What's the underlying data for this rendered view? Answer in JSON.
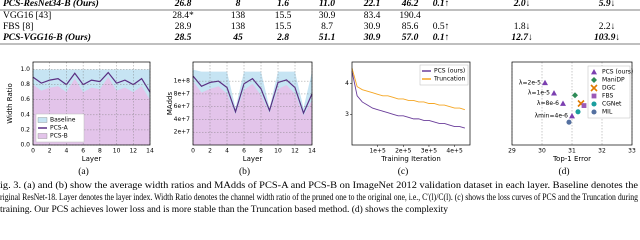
{
  "table": {
    "rows": [
      [
        "PCS-ResNet34-B (Ours)",
        "26.8",
        "8",
        "1.6",
        "11.0",
        "22.1",
        "46.2",
        "0.1↑",
        "2.0↓",
        "5.9↓"
      ],
      [
        "VGG16 [43]",
        "28.4*",
        "138",
        "15.5",
        "30.9",
        "83.4",
        "190.4"
      ],
      [
        "FBS [8]",
        "28.9",
        "138",
        "15.5",
        "8.7",
        "30.9",
        "85.6",
        "0.5↑",
        "1.8↓",
        "2.2↓"
      ],
      [
        "PCS-VGG16-B (Ours)",
        "28.5",
        "45",
        "2.8",
        "51.1",
        "30.9",
        "57.0",
        "0.1↑",
        "12.7↓",
        "103.9↓"
      ]
    ]
  },
  "chart_data": [
    {
      "type": "area",
      "subtitle": "(a)",
      "xlabel": "Layer",
      "ylabel": "Width Ratio",
      "x": [
        0,
        1,
        2,
        3,
        4,
        5,
        6,
        7,
        8,
        9,
        10,
        11,
        12,
        13,
        14
      ],
      "xlim": [
        0,
        14
      ],
      "xticks": [
        0,
        2,
        4,
        6,
        8,
        10,
        12,
        14
      ],
      "ylim": [
        0,
        1.1
      ],
      "yticks": [
        {
          "value": 0,
          "label": "0.0"
        },
        0.2,
        0.4,
        0.6,
        0.8,
        {
          "value": 1,
          "label": "1.0"
        }
      ],
      "grid": true,
      "legend": "lower left",
      "series": [
        {
          "name": "Baseline",
          "style": "area",
          "color": "#c6e4f3",
          "values": [
            1,
            1,
            1,
            1,
            1,
            1,
            1,
            1,
            1,
            1,
            1,
            1,
            1,
            1,
            1
          ]
        },
        {
          "name": "PCS-A",
          "style": "line",
          "color": "#5a2d82",
          "values": [
            0.9,
            0.82,
            0.86,
            0.88,
            0.8,
            0.95,
            0.8,
            0.86,
            0.84,
            0.96,
            0.82,
            0.86,
            0.8,
            0.88,
            0.7
          ]
        },
        {
          "name": "PCS-B",
          "style": "area",
          "color": "#e3c4ea",
          "values": [
            0.8,
            0.72,
            0.76,
            0.78,
            0.7,
            0.88,
            0.7,
            0.76,
            0.74,
            0.9,
            0.72,
            0.76,
            0.7,
            0.78,
            0.6
          ]
        }
      ]
    },
    {
      "type": "area",
      "subtitle": "(b)",
      "xlabel": "Layer",
      "ylabel": "MAdds",
      "x": [
        0,
        1,
        2,
        3,
        4,
        5,
        6,
        7,
        8,
        9,
        10,
        11,
        12,
        13,
        14
      ],
      "xlim": [
        0,
        14
      ],
      "xticks": [
        0,
        2,
        4,
        6,
        8,
        10,
        12,
        14
      ],
      "ylim": [
        0,
        130000000
      ],
      "yticks": [
        {
          "value": 20000000,
          "label": "2e+7"
        },
        {
          "value": 40000000,
          "label": "4e+7"
        },
        {
          "value": 60000000,
          "label": "6e+7"
        },
        {
          "value": 80000000,
          "label": "8e+7"
        },
        {
          "value": 100000000,
          "label": "1e+8"
        }
      ],
      "grid": true,
      "series": [
        {
          "name": "Baseline",
          "style": "area",
          "color": "#c6e4f3",
          "values": [
            118000000,
            115000000,
            115000000,
            115000000,
            115000000,
            58000000,
            115000000,
            115000000,
            115000000,
            58000000,
            115000000,
            115000000,
            115000000,
            58000000,
            115000000
          ]
        },
        {
          "name": "PCS-A",
          "style": "line",
          "color": "#5a2d82",
          "values": [
            108000000,
            92000000,
            98000000,
            100000000,
            90000000,
            52000000,
            96000000,
            104000000,
            88000000,
            54000000,
            98000000,
            102000000,
            90000000,
            50000000,
            80000000
          ]
        },
        {
          "name": "PCS-B",
          "style": "area",
          "color": "#e3c4ea",
          "values": [
            100000000,
            82000000,
            88000000,
            92000000,
            80000000,
            48000000,
            86000000,
            96000000,
            78000000,
            50000000,
            88000000,
            94000000,
            80000000,
            46000000,
            70000000
          ]
        }
      ]
    },
    {
      "type": "line",
      "subtitle": "(c)",
      "xlabel": "Training Iteration",
      "x": [
        0,
        20000,
        40000,
        60000,
        80000,
        100000,
        120000,
        140000,
        160000,
        180000,
        200000,
        220000,
        240000,
        260000,
        280000,
        300000,
        320000,
        340000,
        360000,
        380000,
        400000,
        420000,
        440000
      ],
      "xlim": [
        0,
        460000
      ],
      "xticks": [
        {
          "value": 100000,
          "label": "1e+5"
        },
        {
          "value": 200000,
          "label": "2e+5"
        },
        {
          "value": 300000,
          "label": "3e+5"
        },
        {
          "value": 400000,
          "label": "4e+5"
        }
      ],
      "ylim": [
        2,
        4.7
      ],
      "yticks": [
        3,
        4
      ],
      "grid": false,
      "legend": "upper right",
      "series": [
        {
          "name": "PCS (ours)",
          "style": "line",
          "color": "#6a3d9a",
          "values": [
            4.4,
            3.6,
            3.4,
            3.3,
            3.2,
            3.15,
            3.1,
            3.05,
            3.0,
            2.95,
            2.95,
            2.9,
            2.85,
            2.85,
            2.8,
            2.8,
            2.75,
            2.7,
            2.7,
            2.65,
            2.6,
            2.6,
            2.55
          ]
        },
        {
          "name": "Truncation",
          "style": "line",
          "color": "#f5a623",
          "values": [
            4.5,
            3.9,
            3.8,
            3.75,
            3.7,
            3.65,
            3.6,
            3.6,
            3.55,
            3.5,
            3.5,
            3.45,
            3.45,
            3.4,
            3.4,
            3.35,
            3.35,
            3.3,
            3.3,
            3.25,
            3.2,
            3.2,
            3.15
          ]
        }
      ]
    },
    {
      "type": "scatter",
      "subtitle": "(d)",
      "xlabel": "Top-1 Error",
      "xlim": [
        29,
        33
      ],
      "xticks": [
        29,
        30,
        31,
        32,
        33
      ],
      "ylim": [
        0,
        20
      ],
      "grid": true,
      "legend": "right",
      "series": [
        {
          "name": "PCS (ours)",
          "marker": "triangle",
          "color": "#7b3fb0",
          "x": [
            30.1,
            30.4,
            30.7,
            31.0
          ],
          "values": [
            15,
            12.5,
            10,
            7
          ],
          "point_labels": [
            "λ=2e-5",
            "λ=1e-5",
            "λ=8e-6",
            "λmin=4e-6"
          ]
        },
        {
          "name": "ManiDP",
          "marker": "diamond",
          "color": "#2e8b57",
          "x": [
            31.1
          ],
          "values": [
            12
          ]
        },
        {
          "name": "DGC",
          "marker": "x",
          "color": "#e07b00",
          "x": [
            31.3
          ],
          "values": [
            10
          ]
        },
        {
          "name": "FBS",
          "marker": "square",
          "color": "#9b59b6",
          "x": [
            31.4
          ],
          "values": [
            9.5
          ]
        },
        {
          "name": "CGNet",
          "marker": "circle",
          "color": "#1a9e9e",
          "x": [
            31.2
          ],
          "values": [
            8
          ]
        },
        {
          "name": "MIL",
          "marker": "circle",
          "color": "#5470a0",
          "x": [
            30.9
          ],
          "values": [
            5.5
          ]
        }
      ]
    }
  ],
  "caption": {
    "lines": [
      "ig. 3.   (a) and (b) show the average width ratios and MAdds of PCS-A and PCS-B on ImageNet 2012 validation dataset in each layer. Baseline denotes the",
      "riginal ResNet-18. Layer denotes the layer index. Width Ratio denotes the channel width ratio of the pruned one to the original one, i.e., C′(l)/C(l). (c) shows the loss curves of PCS and the Truncation during",
      "training. Our PCS achieves lower loss and is more stable than the Truncation based method. (d) shows the complexity"
    ]
  }
}
